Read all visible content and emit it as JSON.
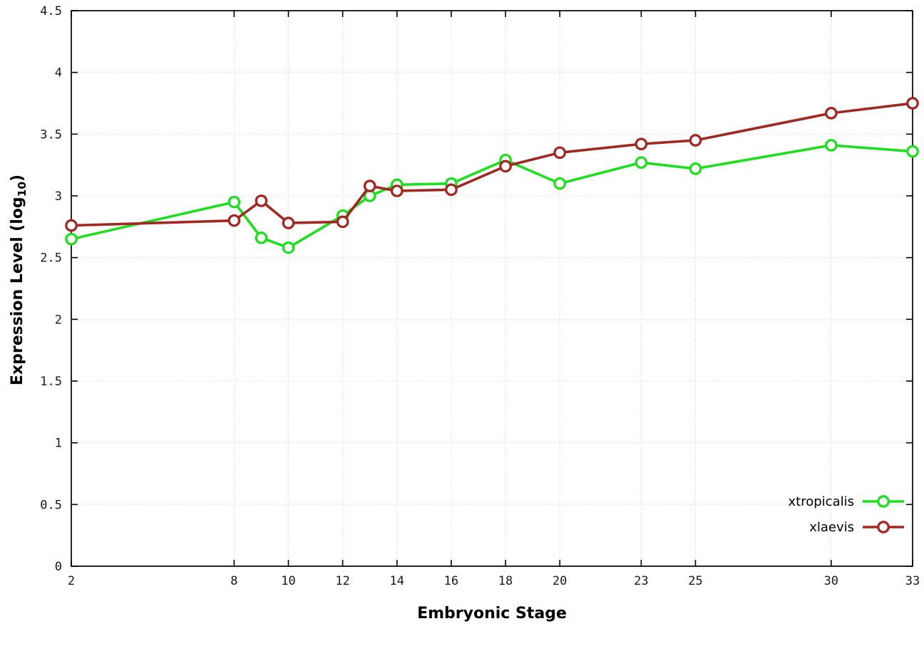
{
  "chart_data": {
    "type": "line",
    "title": "",
    "xlabel": "Embryonic Stage",
    "ylabel": "Expression Level (log10)",
    "ylabel_parts": {
      "main": "Expression Level (log",
      "sub": "10",
      "end": ")"
    },
    "xlim": [
      2,
      33
    ],
    "ylim": [
      0,
      4.5
    ],
    "grid": true,
    "legend_position": "bottom-right",
    "x_ticks": [
      2,
      8,
      10,
      12,
      14,
      16,
      18,
      20,
      23,
      25,
      30,
      33
    ],
    "x_tick_labels": [
      "2",
      "8",
      "10",
      "12",
      "14",
      "16",
      "18",
      "20",
      "23",
      "25",
      "30",
      "33"
    ],
    "y_ticks": [
      0,
      0.5,
      1,
      1.5,
      2,
      2.5,
      3,
      3.5,
      4,
      4.5
    ],
    "y_tick_labels": [
      "0",
      "0.5",
      "1",
      "1.5",
      "2",
      "2.5",
      "3",
      "3.5",
      "4",
      "4.5"
    ],
    "x": [
      2,
      8,
      9,
      10,
      12,
      13,
      14,
      16,
      18,
      20,
      23,
      25,
      30,
      33
    ],
    "series": [
      {
        "name": "xtropicalis",
        "color": "#1fdd1f",
        "values": [
          2.65,
          2.95,
          2.66,
          2.58,
          2.84,
          3.0,
          3.09,
          3.1,
          3.29,
          3.1,
          3.27,
          3.22,
          3.41,
          3.36
        ]
      },
      {
        "name": "xlaevis",
        "color": "#a02823",
        "values": [
          2.76,
          2.8,
          2.96,
          2.78,
          2.79,
          3.08,
          3.04,
          3.05,
          3.24,
          3.35,
          3.42,
          3.45,
          3.67,
          3.75
        ]
      }
    ],
    "colors": {
      "grid": "#c9c9c9",
      "border": "#000000",
      "tick_text": "#1a1a1a"
    }
  }
}
